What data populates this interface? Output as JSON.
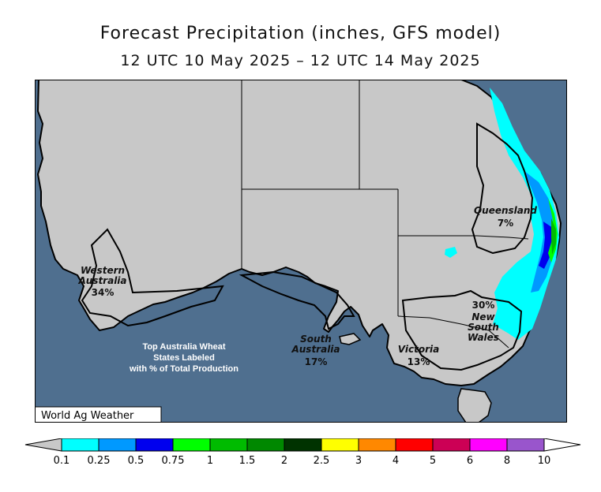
{
  "title": "Forecast Precipitation (inches, GFS model)",
  "subtitle": "12 UTC 10 May 2025 – 12 UTC 14 May 2025",
  "credit": "World Ag Weather",
  "note": [
    "Top Australia Wheat",
    "States Labeled",
    "with % of Total Production"
  ],
  "states": [
    {
      "name": [
        "Western",
        "Australia"
      ],
      "pct": "34%"
    },
    {
      "name": [
        "South",
        "Australia"
      ],
      "pct": "17%"
    },
    {
      "name": [
        "Queensland"
      ],
      "pct": "7%"
    },
    {
      "name": [
        "New",
        "South",
        "Wales"
      ],
      "pct": "30%"
    },
    {
      "name": [
        "Victoria"
      ],
      "pct": "13%"
    }
  ],
  "legend": {
    "labels": [
      "0.1",
      "0.25",
      "0.5",
      "0.75",
      "1",
      "1.5",
      "2",
      "2.5",
      "3",
      "4",
      "5",
      "6",
      "8",
      "10"
    ],
    "colors": [
      "#00ffff",
      "#0099ff",
      "#0000ee",
      "#00ff00",
      "#00bb00",
      "#008800",
      "#003300",
      "#ffff00",
      "#ff8800",
      "#ff0000",
      "#cc0055",
      "#ff00ff",
      "#9955cc"
    ],
    "below_color": "#c8c8c8",
    "above_color": "#ffffff"
  },
  "colors": {
    "ocean": "#4f6f8f",
    "land": "#c8c8c8"
  }
}
